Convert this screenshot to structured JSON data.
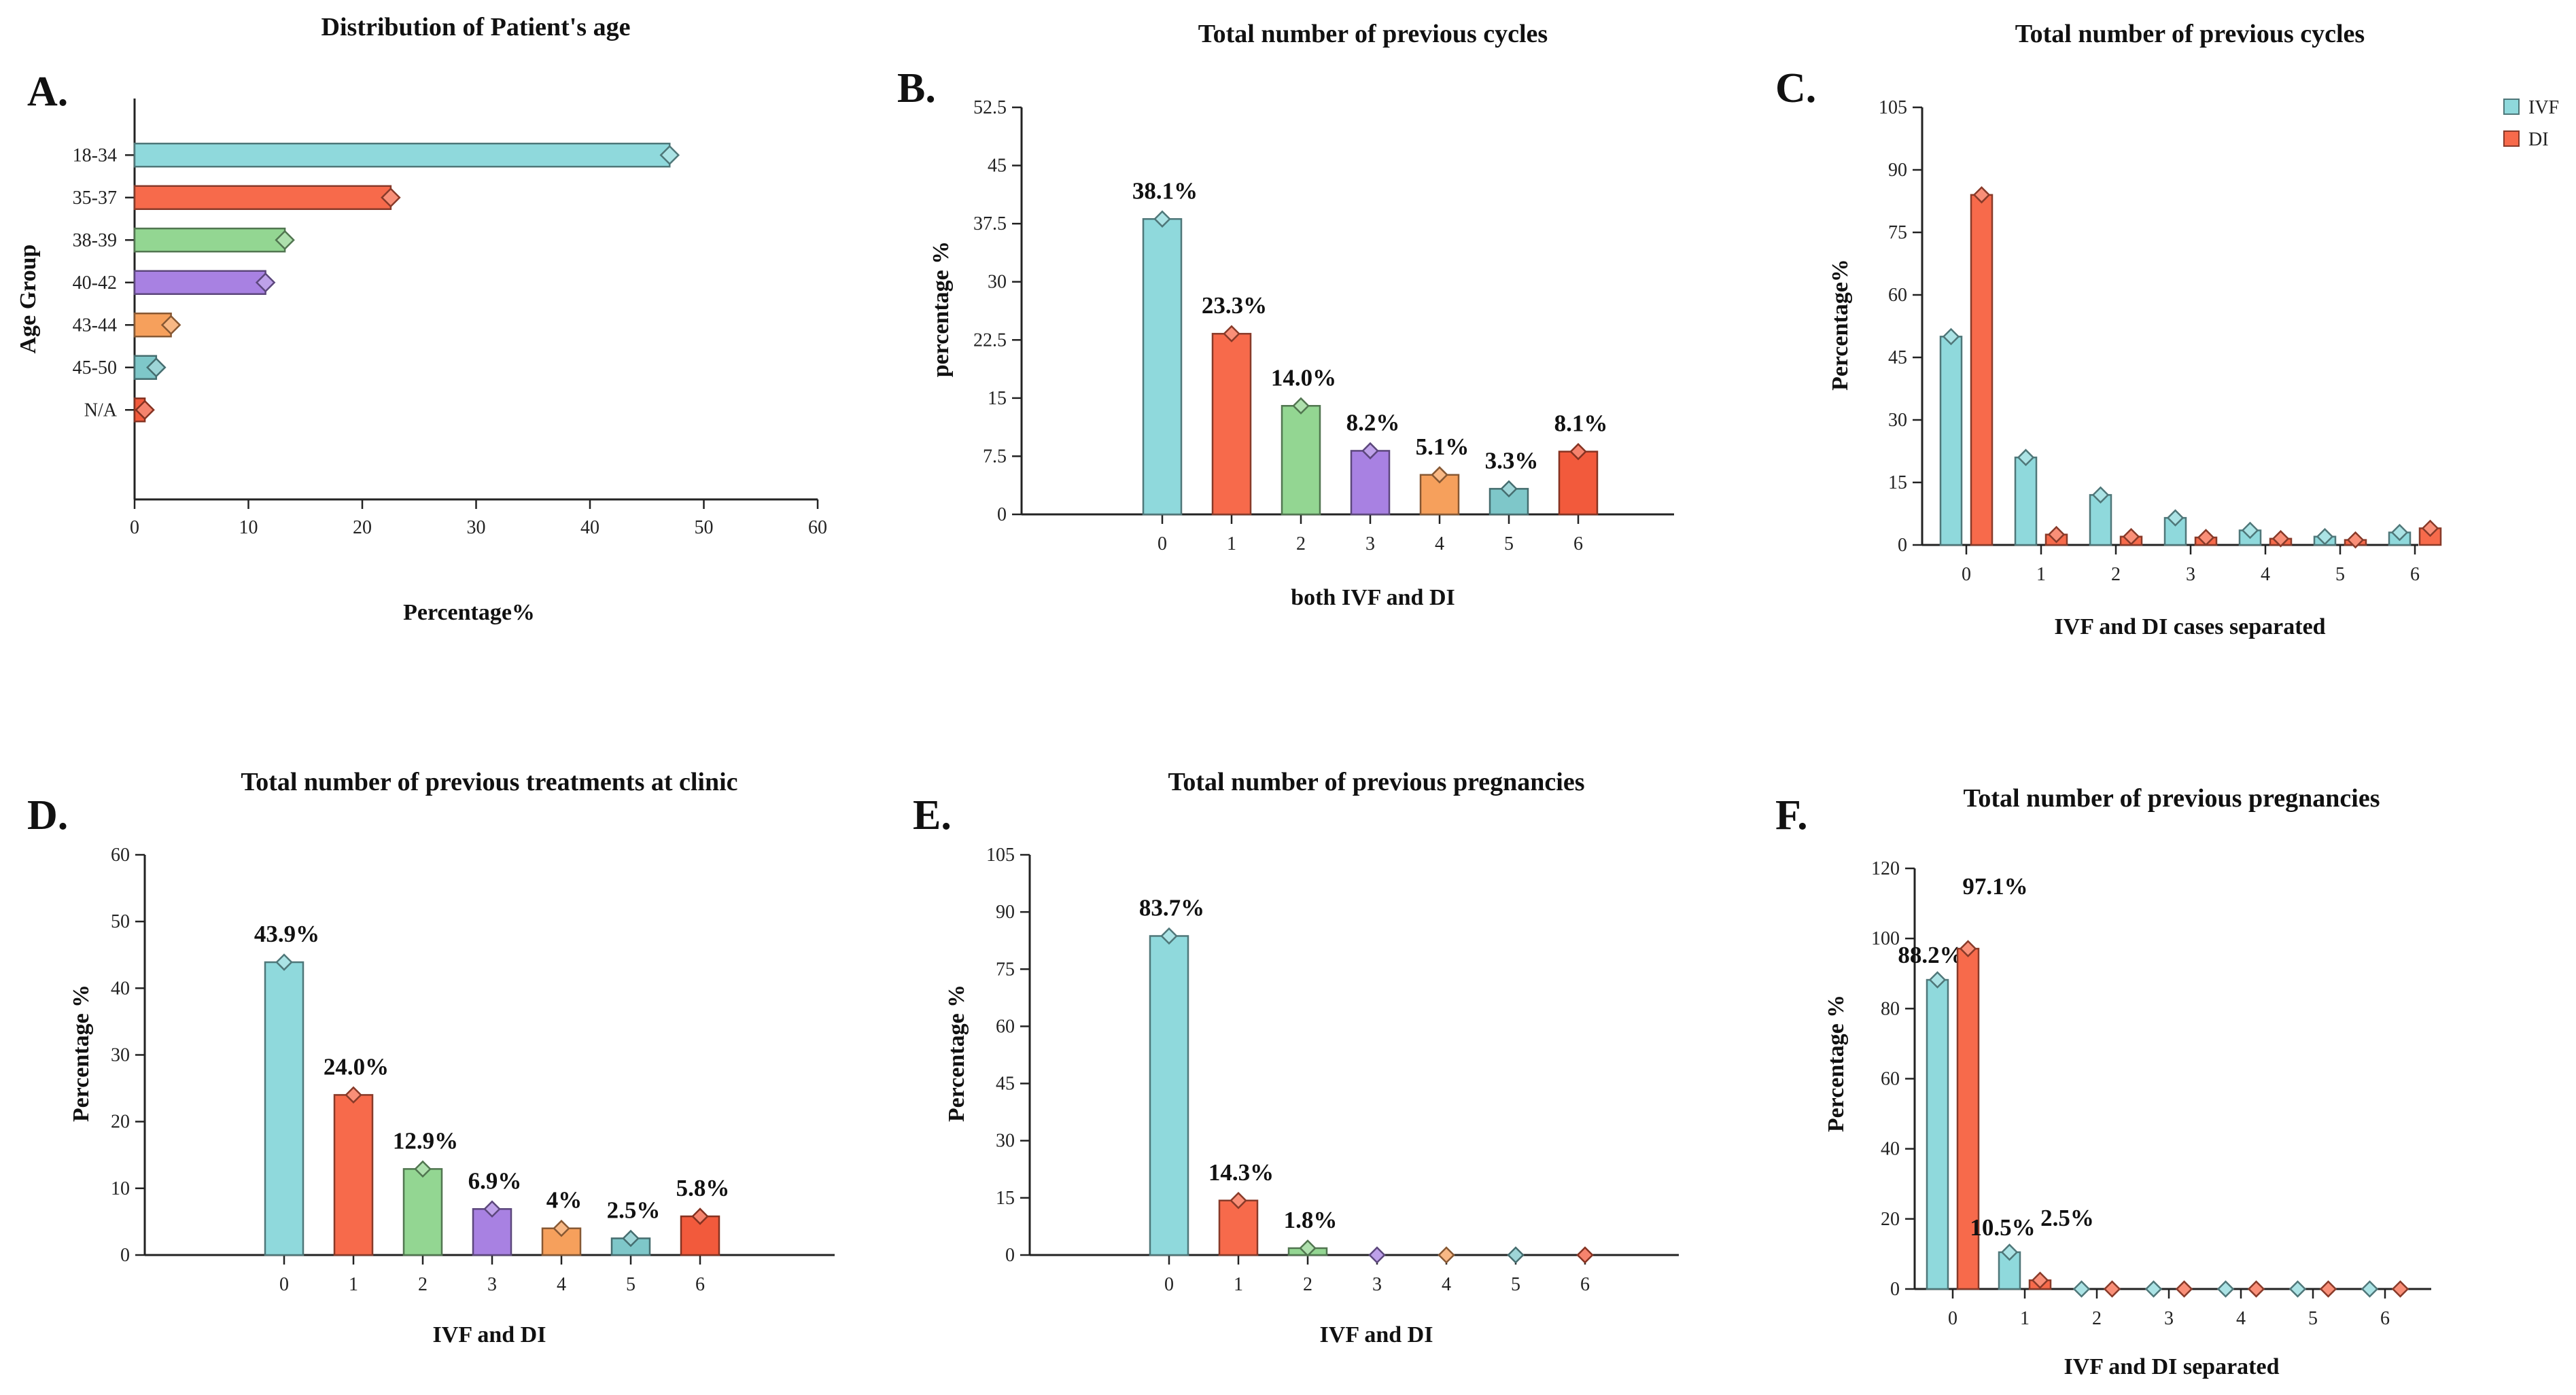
{
  "colors": {
    "teal": "#8fd9dc",
    "orange": "#f76a4b",
    "green": "#93d692",
    "purple": "#a881e2",
    "lightorange": "#f6a05c",
    "tealdark": "#7ec7c9",
    "red": "#f25a3c"
  },
  "legend": [
    {
      "name": "IVF",
      "color": "#8fd9dc"
    },
    {
      "name": "DI",
      "color": "#f76a4b"
    }
  ],
  "chart_data": [
    {
      "id": "A",
      "letter": "A.",
      "type": "bar",
      "orientation": "horizontal",
      "title": "Distribution of Patient's age",
      "xlabel": "Percentage%",
      "ylabel": "Age Group",
      "categories": [
        "18-34",
        "35-37",
        "38-39",
        "40-42",
        "43-44",
        "45-50",
        "N/A"
      ],
      "values": [
        47,
        22.5,
        13.2,
        11.5,
        3.2,
        1.9,
        0.9
      ],
      "colors": [
        "#8fd9dc",
        "#f76a4b",
        "#93d692",
        "#a881e2",
        "#f6a05c",
        "#7ec7c9",
        "#f25a3c"
      ],
      "xlim": [
        0,
        60
      ],
      "xticks": [
        "0",
        "10",
        "20",
        "30",
        "40",
        "50",
        "60"
      ]
    },
    {
      "id": "B",
      "letter": "B.",
      "type": "bar",
      "title": "Total number of previous cycles",
      "xlabel": "both IVF and DI",
      "ylabel": "percentage %",
      "categories": [
        "0",
        "1",
        "2",
        "3",
        "4",
        "5",
        "6"
      ],
      "values": [
        38.1,
        23.3,
        14.0,
        8.2,
        5.1,
        3.3,
        8.1
      ],
      "labels": [
        "38.1%",
        "23.3%",
        "14.0%",
        "8.2%",
        "5.1%",
        "3.3%",
        "8.1%"
      ],
      "colors": [
        "#8fd9dc",
        "#f76a4b",
        "#93d692",
        "#a881e2",
        "#f6a05c",
        "#7ec7c9",
        "#f25a3c"
      ],
      "ylim": [
        0,
        52.5
      ],
      "yticks": [
        "0",
        "7.5",
        "15",
        "22.5",
        "30",
        "37.5",
        "45",
        "52.5"
      ]
    },
    {
      "id": "C",
      "letter": "C.",
      "type": "bar",
      "title": "Total number of previous cycles",
      "xlabel": "IVF and DI cases separated",
      "ylabel": "Percentage%",
      "categories": [
        "0",
        "1",
        "2",
        "3",
        "4",
        "5",
        "6"
      ],
      "series": [
        {
          "name": "IVF",
          "color": "#8fd9dc",
          "values": [
            50,
            21,
            12,
            6.5,
            3.5,
            2,
            3
          ]
        },
        {
          "name": "DI",
          "color": "#f76a4b",
          "values": [
            84,
            2.5,
            2,
            1.8,
            1.5,
            1.2,
            4
          ]
        }
      ],
      "ylim": [
        0,
        105
      ],
      "yticks": [
        "0",
        "15",
        "30",
        "45",
        "60",
        "75",
        "90",
        "105"
      ]
    },
    {
      "id": "D",
      "letter": "D.",
      "type": "bar",
      "title": "Total number of previous treatments at clinic",
      "xlabel": "IVF and DI",
      "ylabel": "Percentage %",
      "categories": [
        "0",
        "1",
        "2",
        "3",
        "4",
        "5",
        "6"
      ],
      "values": [
        43.9,
        24.0,
        12.9,
        6.9,
        4,
        2.5,
        5.8
      ],
      "labels": [
        "43.9%",
        "24.0%",
        "12.9%",
        "6.9%",
        "4%",
        "2.5%",
        "5.8%"
      ],
      "colors": [
        "#8fd9dc",
        "#f76a4b",
        "#93d692",
        "#a881e2",
        "#f6a05c",
        "#7ec7c9",
        "#f25a3c"
      ],
      "ylim": [
        0,
        60
      ],
      "yticks": [
        "0",
        "10",
        "20",
        "30",
        "40",
        "50",
        "60"
      ]
    },
    {
      "id": "E",
      "letter": "E.",
      "type": "bar",
      "title": "Total number of previous pregnancies",
      "xlabel": "IVF and DI",
      "ylabel": "Percentage %",
      "categories": [
        "0",
        "1",
        "2",
        "3",
        "4",
        "5",
        "6"
      ],
      "values": [
        83.7,
        14.3,
        1.8,
        0,
        0,
        0,
        0
      ],
      "labels": [
        "83.7%",
        "14.3%",
        "1.8%",
        "",
        "",
        "",
        ""
      ],
      "colors": [
        "#8fd9dc",
        "#f76a4b",
        "#93d692",
        "#a881e2",
        "#f6a05c",
        "#7ec7c9",
        "#f25a3c"
      ],
      "ylim": [
        0,
        105
      ],
      "yticks": [
        "0",
        "15",
        "30",
        "45",
        "60",
        "75",
        "90",
        "105"
      ]
    },
    {
      "id": "F",
      "letter": "F.",
      "type": "bar",
      "title": "Total number of previous pregnancies",
      "xlabel": "IVF and DI separated",
      "ylabel": "Percentage %",
      "categories": [
        "0",
        "1",
        "2",
        "3",
        "4",
        "5",
        "6"
      ],
      "series": [
        {
          "name": "IVF",
          "color": "#8fd9dc",
          "values": [
            88.2,
            10.5,
            0,
            0,
            0,
            0,
            0
          ],
          "labels": [
            "88.2%",
            "10.5%",
            "",
            "",
            "",
            "",
            ""
          ]
        },
        {
          "name": "DI",
          "color": "#f76a4b",
          "values": [
            97.1,
            2.5,
            0,
            0,
            0,
            0,
            0
          ],
          "labels": [
            "97.1%",
            "2.5%",
            "",
            "",
            "",
            "",
            ""
          ]
        }
      ],
      "ylim": [
        0,
        120
      ],
      "yticks": [
        "0",
        "20",
        "40",
        "60",
        "80",
        "100",
        "120"
      ]
    }
  ]
}
